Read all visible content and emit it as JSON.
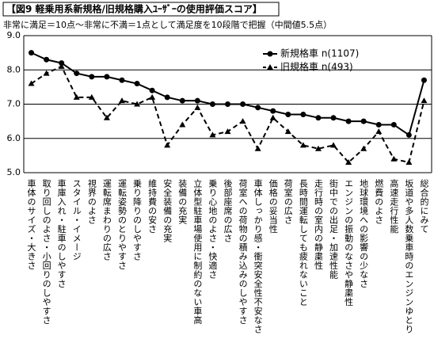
{
  "chart_data": {
    "type": "line",
    "title": "【図9 軽乗用系新規格/旧規格購入ﾕｰｻﾞｰの使用評価スコア】",
    "subtitle": "非常に満足＝10点～非常に不満＝1点として満足度を10段階で把握（中間値5.5点）",
    "categories": [
      "車体のサイズ・大きさ",
      "取り回しのよさ・小回りのしやすさ",
      "車庫入れ・駐車のしやすさ",
      "スタイル・イメージ",
      "視界のよさ",
      "運転席まわりの広さ",
      "運転姿勢のとりやすさ",
      "乗り降りのしやすさ",
      "維持費の安さ",
      "安全装備の充実",
      "装備の充実",
      "立体型駐車場使用に制約のない車高",
      "乗り心地のよさ・快適さ",
      "後部座席の広さ",
      "荷室への荷物の積み込みのしやすさ",
      "車体しっかり感・衝突安全性不安なさ",
      "価格の妥当性",
      "荷室の広さ",
      "長時間運転しても疲れないこと",
      "走行時の室内の静粛性",
      "街中での出足・加速性能",
      "エンジンの振動のなさや静粛性",
      "地球環境への影響の少なさ",
      "燃費のよさ",
      "高速走行性能",
      "坂道や多人数乗車時のエンジンゆとり",
      "総合的にみて"
    ],
    "series": [
      {
        "name": "新規格車 n(1107)",
        "color": "#000000",
        "values": [
          8.5,
          8.3,
          8.2,
          7.9,
          7.8,
          7.8,
          7.7,
          7.6,
          7.4,
          7.2,
          7.1,
          7.1,
          7.0,
          7.0,
          7.0,
          6.9,
          6.8,
          6.7,
          6.7,
          6.6,
          6.6,
          6.5,
          6.5,
          6.4,
          6.4,
          6.1,
          7.7
        ]
      },
      {
        "name": "旧規格車 n(493)",
        "color": "#000000",
        "values": [
          7.6,
          7.9,
          8.1,
          7.2,
          7.2,
          6.6,
          7.1,
          7.0,
          7.2,
          5.8,
          6.4,
          6.9,
          6.1,
          6.2,
          6.5,
          5.7,
          6.6,
          6.2,
          5.8,
          5.7,
          5.8,
          5.3,
          5.7,
          6.2,
          5.4,
          5.3,
          7.1
        ]
      }
    ],
    "ylim": [
      5,
      9
    ],
    "yticks": [
      {
        "value": 5,
        "label": "5.0"
      },
      {
        "value": 6,
        "label": "6.0"
      },
      {
        "value": 7,
        "label": "7.0"
      },
      {
        "value": 8,
        "label": "8.0"
      },
      {
        "value": 9,
        "label": "9.0"
      }
    ],
    "grid": true
  }
}
